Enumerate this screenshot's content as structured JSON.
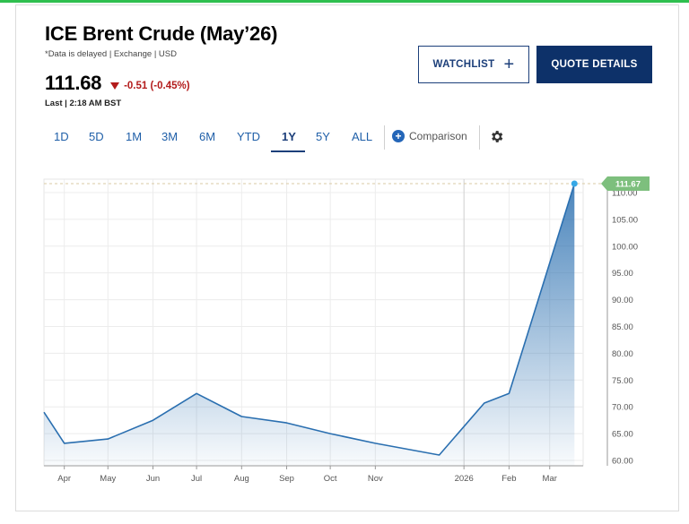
{
  "header": {
    "title": "ICE Brent Crude (May’26)",
    "subtitle": "*Data is delayed | Exchange | USD",
    "price": "111.68",
    "change": "-0.51 (-0.45%)",
    "last_updated": "Last | 2:18 AM BST"
  },
  "buttons": {
    "watchlist": "WATCHLIST",
    "watchlist_icon": "+",
    "quote_details": "QUOTE DETAILS"
  },
  "ranges": [
    "1D",
    "5D",
    "1M",
    "3M",
    "6M",
    "YTD",
    "1Y",
    "5Y",
    "ALL"
  ],
  "active_range": "1Y",
  "comparison": {
    "icon": "+",
    "label": "Comparison"
  },
  "icons": {
    "settings": "gear-icon",
    "comparison": "plus-circle-icon",
    "change": "down-triangle-icon"
  },
  "colors": {
    "line": "#2a6fb0",
    "accent_navy": "#0d3169",
    "negative": "#b31b1b",
    "current_tag": "#7dbf7d"
  },
  "chart_data": {
    "type": "area",
    "x": [
      "2025-03-18",
      "2025-04-01",
      "2025-05-01",
      "2025-06-01",
      "2025-07-01",
      "2025-08-01",
      "2025-09-01",
      "2025-10-01",
      "2025-11-01",
      "2025-12-15",
      "2026-01-15",
      "2026-02-01",
      "2026-03-18"
    ],
    "y": [
      69.0,
      63.2,
      64.0,
      67.5,
      72.5,
      68.2,
      67.0,
      65.0,
      63.2,
      61.0,
      70.7,
      72.5,
      111.67
    ],
    "x_tick_labels": [
      "Apr",
      "May",
      "Jun",
      "Jul",
      "Aug",
      "Sep",
      "Oct",
      "Nov",
      "2026",
      "Feb",
      "Mar"
    ],
    "x_tick_dates": [
      "2025-04-01",
      "2025-05-01",
      "2025-06-01",
      "2025-07-01",
      "2025-08-01",
      "2025-09-01",
      "2025-10-01",
      "2025-11-01",
      "2026-01-01",
      "2026-02-01",
      "2026-03-01"
    ],
    "y_ticks": [
      "60.00",
      "65.00",
      "70.00",
      "75.00",
      "80.00",
      "85.00",
      "90.00",
      "95.00",
      "100.00",
      "105.00",
      "110.00"
    ],
    "ylim": [
      59,
      112.5
    ],
    "xlim": [
      "2025-03-18",
      "2026-03-24"
    ],
    "current_value_label": "111.67",
    "y_axis_position": "right",
    "grid": true
  }
}
